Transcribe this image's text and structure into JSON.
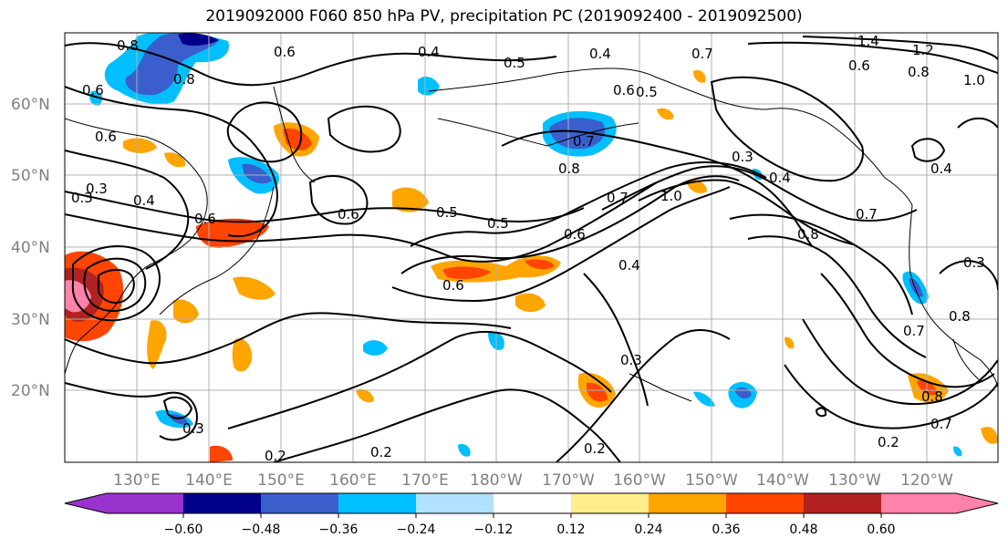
{
  "title": "2019092000 F060 850 hPa PV, precipitation PC (2019092400 - 2019092500)",
  "lat_labels": [
    "60°N",
    "50°N",
    "40°N",
    "30°N",
    "20°N"
  ],
  "lon_labels": [
    "130°E",
    "140°E",
    "150°E",
    "160°E",
    "170°E",
    "180°W",
    "170°W",
    "160°W",
    "150°W",
    "140°W",
    "130°W",
    "120°W"
  ],
  "colorbar": {
    "tick_labels": [
      "−0.60",
      "−0.48",
      "−0.36",
      "−0.24",
      "−0.12",
      "0.12",
      "0.24",
      "0.36",
      "0.48",
      "0.60"
    ],
    "colors": [
      "#9a32cd",
      "#00008b",
      "#3a5fcd",
      "#00bfff",
      "#b0e2ff",
      "#ffffff",
      "#ffec8b",
      "#ffa500",
      "#ff4500",
      "#b22222",
      "#ff82ab"
    ]
  },
  "contour_labels": [
    "0.8",
    "0.6",
    "0.4",
    "0.5",
    "0.4",
    "0.7",
    "1.4",
    "1.2",
    "1.0",
    "0.6",
    "0.8",
    "0.6",
    "0.6",
    "0.8",
    "0.5",
    "0.6",
    "0.7",
    "0.3",
    "0.4",
    "1.0",
    "0.8",
    "0.7",
    "0.3",
    "0.4",
    "0.5",
    "0.6",
    "0.5",
    "0.6",
    "0.7",
    "0.6",
    "0.4",
    "0.6",
    "0.3",
    "0.4",
    "0.8",
    "0.7",
    "0.3",
    "0.2",
    "0.3",
    "0.3",
    "0.2",
    "0.2",
    "0.2",
    "0.7",
    "0.8",
    "0.8"
  ]
}
